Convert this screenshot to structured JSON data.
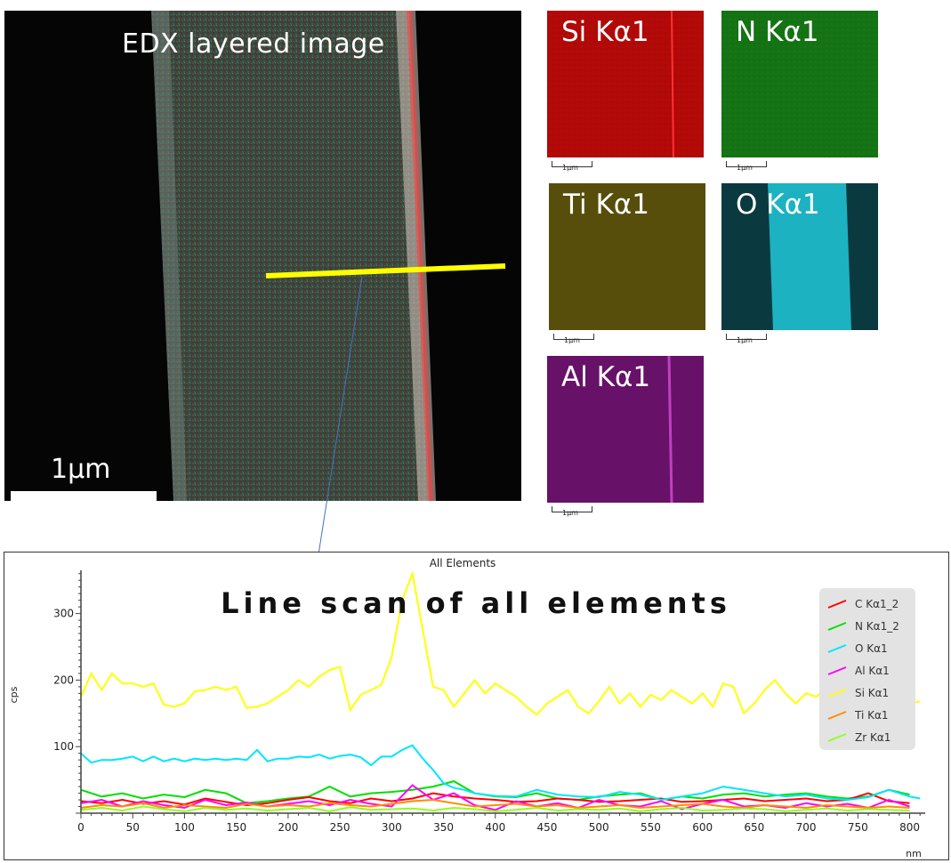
{
  "main_image": {
    "title": "EDX layered image",
    "scale_label": "1µm"
  },
  "maps": [
    {
      "label": "Si Kα1",
      "color": "#e01010",
      "scale_label": "1µm"
    },
    {
      "label": "N Kα1",
      "color": "#20c020",
      "scale_label": "1µm"
    },
    {
      "label": "Ti Kα1",
      "color": "#e0d020",
      "scale_label": "1µm"
    },
    {
      "label": "O Kα1",
      "color": "#20e0f0",
      "scale_label": "1µm"
    },
    {
      "label": "Al Kα1",
      "color": "#d020d0",
      "scale_label": "1µm"
    }
  ],
  "overlay_title": "Line scan of all elements",
  "chart_data": {
    "type": "line",
    "title": "All Elements",
    "xlabel": "nm",
    "ylabel": "cps",
    "xlim": [
      0,
      815
    ],
    "ylim": [
      0,
      365
    ],
    "x_ticks": [
      0,
      50,
      100,
      150,
      200,
      250,
      300,
      350,
      400,
      450,
      500,
      550,
      600,
      650,
      700,
      750,
      800
    ],
    "y_ticks": [
      100,
      200,
      300
    ],
    "legend_position": "top-right",
    "series": [
      {
        "name": "C Kα1_2",
        "color": "#ff0000",
        "x": [
          0,
          20,
          40,
          60,
          80,
          100,
          120,
          140,
          160,
          180,
          200,
          220,
          240,
          260,
          280,
          300,
          320,
          340,
          360,
          380,
          400,
          420,
          440,
          460,
          480,
          500,
          520,
          540,
          560,
          580,
          600,
          620,
          640,
          660,
          680,
          700,
          720,
          740,
          760,
          780,
          800
        ],
        "values": [
          18,
          15,
          20,
          14,
          18,
          13,
          22,
          17,
          12,
          15,
          20,
          24,
          18,
          15,
          22,
          18,
          22,
          30,
          25,
          22,
          20,
          17,
          18,
          22,
          20,
          17,
          18,
          20,
          22,
          17,
          18,
          20,
          22,
          18,
          20,
          22,
          18,
          20,
          30,
          18,
          15
        ]
      },
      {
        "name": "N Kα1_2",
        "color": "#00e000",
        "x": [
          0,
          20,
          40,
          60,
          80,
          100,
          120,
          140,
          160,
          180,
          200,
          220,
          240,
          260,
          280,
          300,
          320,
          340,
          360,
          380,
          400,
          420,
          440,
          460,
          480,
          500,
          520,
          540,
          560,
          580,
          600,
          620,
          640,
          660,
          680,
          700,
          720,
          740,
          760,
          780,
          800
        ],
        "values": [
          35,
          25,
          30,
          22,
          28,
          24,
          35,
          30,
          15,
          18,
          22,
          25,
          40,
          25,
          30,
          32,
          35,
          40,
          48,
          30,
          25,
          24,
          30,
          22,
          20,
          25,
          28,
          30,
          20,
          25,
          22,
          28,
          30,
          25,
          28,
          30,
          25,
          22,
          25,
          35,
          28
        ]
      },
      {
        "name": "O Kα1",
        "color": "#00e5ff",
        "x": [
          0,
          10,
          20,
          30,
          40,
          50,
          60,
          70,
          80,
          90,
          100,
          110,
          120,
          130,
          140,
          150,
          160,
          170,
          180,
          190,
          200,
          210,
          220,
          230,
          240,
          250,
          260,
          270,
          280,
          290,
          300,
          310,
          320,
          330,
          340,
          350,
          360,
          370,
          380,
          390,
          400,
          420,
          440,
          460,
          480,
          500,
          520,
          540,
          560,
          580,
          600,
          620,
          640,
          660,
          680,
          700,
          720,
          740,
          760,
          780,
          800,
          810
        ],
        "values": [
          90,
          76,
          80,
          80,
          82,
          85,
          78,
          85,
          78,
          82,
          78,
          82,
          80,
          82,
          80,
          82,
          80,
          95,
          78,
          82,
          82,
          85,
          84,
          88,
          82,
          86,
          88,
          84,
          72,
          85,
          85,
          95,
          102,
          82,
          65,
          45,
          38,
          35,
          30,
          28,
          26,
          25,
          35,
          28,
          25,
          24,
          32,
          28,
          20,
          25,
          30,
          40,
          35,
          30,
          25,
          28,
          22,
          20,
          24,
          35,
          25,
          22
        ]
      },
      {
        "name": "Al Kα1",
        "color": "#ff00ff",
        "x": [
          0,
          20,
          40,
          60,
          80,
          100,
          120,
          140,
          160,
          180,
          200,
          220,
          240,
          260,
          280,
          300,
          320,
          340,
          360,
          380,
          400,
          420,
          440,
          460,
          480,
          500,
          520,
          540,
          560,
          580,
          600,
          620,
          640,
          660,
          680,
          700,
          720,
          740,
          760,
          780,
          800
        ],
        "values": [
          15,
          20,
          10,
          18,
          12,
          8,
          20,
          12,
          16,
          10,
          14,
          18,
          12,
          20,
          14,
          10,
          42,
          20,
          30,
          12,
          5,
          18,
          10,
          15,
          8,
          20,
          12,
          10,
          18,
          6,
          14,
          20,
          10,
          12,
          8,
          15,
          10,
          14,
          8,
          20,
          10
        ]
      },
      {
        "name": "Si Kα1",
        "color": "#ffff00",
        "x": [
          0,
          10,
          20,
          30,
          40,
          50,
          60,
          70,
          80,
          90,
          100,
          110,
          120,
          130,
          140,
          150,
          160,
          170,
          180,
          190,
          200,
          210,
          220,
          230,
          240,
          250,
          260,
          270,
          280,
          290,
          300,
          310,
          320,
          330,
          340,
          350,
          360,
          370,
          380,
          390,
          400,
          410,
          420,
          430,
          440,
          450,
          460,
          470,
          480,
          490,
          500,
          510,
          520,
          530,
          540,
          550,
          560,
          570,
          580,
          590,
          600,
          610,
          620,
          630,
          640,
          650,
          660,
          670,
          680,
          690,
          700,
          710,
          720,
          730,
          740,
          750,
          760,
          770,
          780,
          790,
          800,
          810
        ],
        "values": [
          175,
          210,
          185,
          210,
          195,
          195,
          190,
          195,
          163,
          160,
          165,
          183,
          185,
          190,
          185,
          190,
          158,
          160,
          165,
          175,
          185,
          200,
          190,
          205,
          215,
          220,
          155,
          178,
          185,
          193,
          235,
          320,
          360,
          275,
          190,
          185,
          160,
          180,
          200,
          180,
          195,
          185,
          175,
          160,
          148,
          165,
          175,
          185,
          160,
          150,
          168,
          190,
          165,
          180,
          160,
          178,
          170,
          185,
          175,
          165,
          180,
          160,
          195,
          190,
          150,
          165,
          185,
          200,
          180,
          165,
          180,
          175,
          190,
          165,
          175,
          170,
          180,
          165,
          170,
          168,
          165,
          168
        ]
      },
      {
        "name": "Ti Kα1",
        "color": "#ff8c00",
        "x": [
          0,
          20,
          40,
          60,
          80,
          100,
          120,
          140,
          160,
          180,
          200,
          220,
          240,
          260,
          280,
          300,
          320,
          340,
          360,
          380,
          400,
          420,
          440,
          460,
          480,
          500,
          520,
          540,
          560,
          580,
          600,
          620,
          640,
          660,
          680,
          700,
          720,
          740,
          760,
          780,
          800
        ],
        "values": [
          8,
          12,
          10,
          15,
          8,
          12,
          10,
          8,
          14,
          10,
          12,
          10,
          15,
          12,
          10,
          14,
          18,
          20,
          15,
          10,
          12,
          14,
          10,
          12,
          8,
          10,
          12,
          8,
          10,
          12,
          14,
          10,
          8,
          12,
          10,
          8,
          12,
          10,
          8,
          10,
          8
        ]
      },
      {
        "name": "Zr Kα1",
        "color": "#90ff20",
        "x": [
          0,
          20,
          40,
          60,
          80,
          100,
          120,
          140,
          160,
          180,
          200,
          220,
          240,
          260,
          280,
          300,
          320,
          340,
          360,
          380,
          400,
          420,
          440,
          460,
          480,
          500,
          520,
          540,
          560,
          580,
          600,
          620,
          640,
          660,
          680,
          700,
          720,
          740,
          760,
          780,
          800
        ],
        "values": [
          5,
          8,
          4,
          10,
          6,
          3,
          8,
          5,
          7,
          4,
          6,
          8,
          3,
          9,
          5,
          6,
          7,
          4,
          8,
          6,
          3,
          5,
          8,
          4,
          6,
          5,
          7,
          3,
          6,
          8,
          4,
          5,
          7,
          6,
          3,
          5,
          7,
          4,
          6,
          5,
          4
        ]
      }
    ]
  }
}
